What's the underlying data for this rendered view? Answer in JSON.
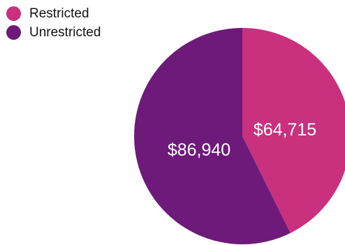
{
  "chart_data": {
    "type": "pie",
    "legend_position": "top-left",
    "slices": [
      {
        "name": "Restricted",
        "value": 64715,
        "label": "$64,715",
        "color": "#c9317f"
      },
      {
        "name": "Unrestricted",
        "value": 86940,
        "label": "$86,940",
        "color": "#6e1a7a"
      }
    ]
  }
}
